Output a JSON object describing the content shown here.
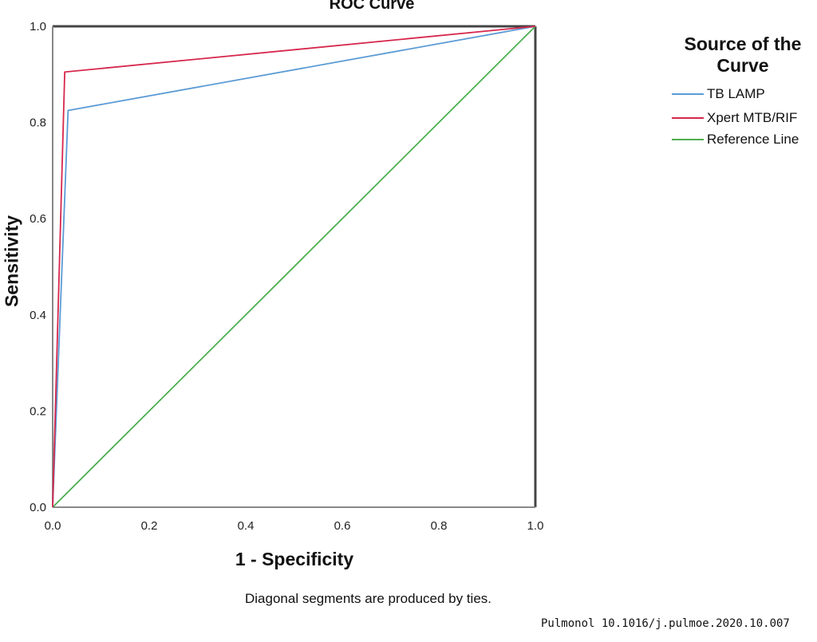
{
  "chart_data": {
    "type": "line",
    "title": "ROC Curve",
    "xlabel": "1 - Specificity",
    "ylabel": "Sensitivity",
    "xlim": [
      0,
      1
    ],
    "ylim": [
      0,
      1
    ],
    "xticks": [
      "0.0",
      "0.2",
      "0.4",
      "0.6",
      "0.8",
      "1.0"
    ],
    "yticks": [
      "0.0",
      "0.2",
      "0.4",
      "0.6",
      "0.8",
      "1.0"
    ],
    "grid": false,
    "legend_title": "Source of the Curve",
    "legend_position": "right",
    "series": [
      {
        "name": "TB LAMP",
        "color": "#5b9bd5",
        "x": [
          0,
          0.032,
          1
        ],
        "y": [
          0,
          0.825,
          1
        ]
      },
      {
        "name": "Xpert MTB/RIF",
        "color": "#d6274c",
        "x": [
          0,
          0.025,
          1
        ],
        "y": [
          0,
          0.905,
          1
        ]
      },
      {
        "name": "Reference Line",
        "color": "#4caf50",
        "x": [
          0,
          1
        ],
        "y": [
          0,
          1
        ]
      }
    ],
    "annotations": [
      "Diagonal segments are produced by ties."
    ]
  },
  "credit": "Pulmonol 10.1016/j.pulmoe.2020.10.007"
}
